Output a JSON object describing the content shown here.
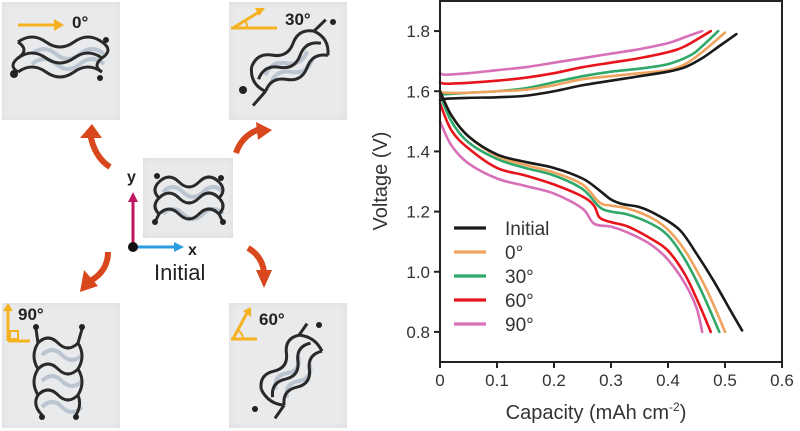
{
  "left_panel": {
    "center_label": "Initial",
    "axis_x_label": "x",
    "axis_y_label": "y",
    "photos": [
      {
        "id": "0",
        "label": "0°",
        "icon": "arrow-right-icon"
      },
      {
        "id": "30",
        "label": "30°",
        "icon": "angle-30-icon"
      },
      {
        "id": "60",
        "label": "60°",
        "icon": "angle-60-icon"
      },
      {
        "id": "90",
        "label": "90°",
        "icon": "right-angle-icon"
      }
    ],
    "colors": {
      "arrow": "#d9471c",
      "angle_marker": "#f5b120",
      "y_axis": "#c0185e",
      "x_axis": "#2a9de0"
    }
  },
  "chart_data": {
    "type": "line",
    "title": "",
    "xlabel": "Capacity (mAh cm",
    "xlabel_sup": "-2",
    "xlabel_end": ")",
    "ylabel": "Voltage (V)",
    "xlim": [
      0,
      0.6
    ],
    "ylim": [
      0.7,
      1.9
    ],
    "xticks": [
      "0",
      "0.1",
      "0.2",
      "0.3",
      "0.4",
      "0.5",
      "0.6"
    ],
    "xtick_values": [
      0,
      0.1,
      0.2,
      0.3,
      0.4,
      0.5,
      0.6
    ],
    "yticks": [
      "0.8",
      "1.0",
      "1.2",
      "1.4",
      "1.6",
      "1.8"
    ],
    "ytick_values": [
      0.8,
      1.0,
      1.2,
      1.4,
      1.6,
      1.8
    ],
    "grid": false,
    "legend_position": "bottom-left",
    "series": [
      {
        "name": "Initial",
        "color": "#1a1a1a",
        "charge": [
          [
            0,
            1.57
          ],
          [
            0.01,
            1.575
          ],
          [
            0.05,
            1.578
          ],
          [
            0.1,
            1.58
          ],
          [
            0.15,
            1.585
          ],
          [
            0.2,
            1.6
          ],
          [
            0.25,
            1.62
          ],
          [
            0.3,
            1.635
          ],
          [
            0.35,
            1.65
          ],
          [
            0.4,
            1.665
          ],
          [
            0.43,
            1.68
          ],
          [
            0.46,
            1.71
          ],
          [
            0.49,
            1.75
          ],
          [
            0.52,
            1.79
          ]
        ],
        "discharge": [
          [
            0,
            1.6
          ],
          [
            0.02,
            1.52
          ],
          [
            0.05,
            1.45
          ],
          [
            0.1,
            1.39
          ],
          [
            0.15,
            1.365
          ],
          [
            0.2,
            1.345
          ],
          [
            0.25,
            1.31
          ],
          [
            0.28,
            1.27
          ],
          [
            0.3,
            1.24
          ],
          [
            0.32,
            1.225
          ],
          [
            0.35,
            1.215
          ],
          [
            0.38,
            1.19
          ],
          [
            0.42,
            1.14
          ],
          [
            0.45,
            1.06
          ],
          [
            0.48,
            0.97
          ],
          [
            0.51,
            0.87
          ],
          [
            0.53,
            0.805
          ]
        ]
      },
      {
        "name": "0°",
        "color": "#f0a35e",
        "charge": [
          [
            0,
            1.6
          ],
          [
            0.01,
            1.595
          ],
          [
            0.05,
            1.595
          ],
          [
            0.1,
            1.6
          ],
          [
            0.15,
            1.605
          ],
          [
            0.2,
            1.62
          ],
          [
            0.25,
            1.64
          ],
          [
            0.3,
            1.65
          ],
          [
            0.35,
            1.66
          ],
          [
            0.4,
            1.67
          ],
          [
            0.43,
            1.69
          ],
          [
            0.46,
            1.73
          ],
          [
            0.5,
            1.795
          ]
        ],
        "discharge": [
          [
            0,
            1.6
          ],
          [
            0.02,
            1.52
          ],
          [
            0.05,
            1.45
          ],
          [
            0.1,
            1.385
          ],
          [
            0.15,
            1.355
          ],
          [
            0.2,
            1.33
          ],
          [
            0.25,
            1.29
          ],
          [
            0.28,
            1.23
          ],
          [
            0.3,
            1.22
          ],
          [
            0.33,
            1.21
          ],
          [
            0.37,
            1.18
          ],
          [
            0.4,
            1.14
          ],
          [
            0.43,
            1.07
          ],
          [
            0.46,
            0.97
          ],
          [
            0.48,
            0.89
          ],
          [
            0.5,
            0.8
          ]
        ]
      },
      {
        "name": "30°",
        "color": "#2fa86a",
        "charge": [
          [
            0,
            1.59
          ],
          [
            0.01,
            1.59
          ],
          [
            0.05,
            1.595
          ],
          [
            0.1,
            1.6
          ],
          [
            0.15,
            1.61
          ],
          [
            0.2,
            1.63
          ],
          [
            0.25,
            1.65
          ],
          [
            0.3,
            1.665
          ],
          [
            0.35,
            1.675
          ],
          [
            0.4,
            1.69
          ],
          [
            0.44,
            1.72
          ],
          [
            0.46,
            1.75
          ],
          [
            0.488,
            1.8
          ]
        ],
        "discharge": [
          [
            0,
            1.59
          ],
          [
            0.02,
            1.5
          ],
          [
            0.05,
            1.43
          ],
          [
            0.1,
            1.375
          ],
          [
            0.15,
            1.345
          ],
          [
            0.2,
            1.32
          ],
          [
            0.25,
            1.275
          ],
          [
            0.28,
            1.215
          ],
          [
            0.3,
            1.2
          ],
          [
            0.33,
            1.19
          ],
          [
            0.37,
            1.16
          ],
          [
            0.4,
            1.12
          ],
          [
            0.43,
            1.04
          ],
          [
            0.46,
            0.93
          ],
          [
            0.49,
            0.8
          ]
        ]
      },
      {
        "name": "60°",
        "color": "#e8141c",
        "charge": [
          [
            0,
            1.63
          ],
          [
            0.01,
            1.625
          ],
          [
            0.05,
            1.628
          ],
          [
            0.1,
            1.635
          ],
          [
            0.15,
            1.645
          ],
          [
            0.2,
            1.66
          ],
          [
            0.25,
            1.68
          ],
          [
            0.3,
            1.695
          ],
          [
            0.35,
            1.71
          ],
          [
            0.4,
            1.73
          ],
          [
            0.43,
            1.75
          ],
          [
            0.475,
            1.8
          ]
        ],
        "discharge": [
          [
            0,
            1.56
          ],
          [
            0.02,
            1.47
          ],
          [
            0.05,
            1.41
          ],
          [
            0.1,
            1.345
          ],
          [
            0.15,
            1.32
          ],
          [
            0.2,
            1.29
          ],
          [
            0.25,
            1.25
          ],
          [
            0.27,
            1.22
          ],
          [
            0.28,
            1.18
          ],
          [
            0.3,
            1.165
          ],
          [
            0.33,
            1.15
          ],
          [
            0.37,
            1.11
          ],
          [
            0.4,
            1.07
          ],
          [
            0.43,
            0.99
          ],
          [
            0.455,
            0.89
          ],
          [
            0.475,
            0.8
          ]
        ]
      },
      {
        "name": "90°",
        "color": "#d870b8",
        "charge": [
          [
            0,
            1.66
          ],
          [
            0.01,
            1.655
          ],
          [
            0.05,
            1.66
          ],
          [
            0.1,
            1.67
          ],
          [
            0.15,
            1.68
          ],
          [
            0.2,
            1.695
          ],
          [
            0.25,
            1.71
          ],
          [
            0.3,
            1.725
          ],
          [
            0.35,
            1.74
          ],
          [
            0.4,
            1.76
          ],
          [
            0.43,
            1.78
          ],
          [
            0.46,
            1.8
          ]
        ],
        "discharge": [
          [
            0,
            1.5
          ],
          [
            0.02,
            1.42
          ],
          [
            0.05,
            1.36
          ],
          [
            0.1,
            1.31
          ],
          [
            0.15,
            1.285
          ],
          [
            0.2,
            1.26
          ],
          [
            0.25,
            1.21
          ],
          [
            0.27,
            1.16
          ],
          [
            0.3,
            1.15
          ],
          [
            0.33,
            1.13
          ],
          [
            0.37,
            1.09
          ],
          [
            0.4,
            1.04
          ],
          [
            0.43,
            0.96
          ],
          [
            0.45,
            0.88
          ],
          [
            0.46,
            0.8
          ]
        ]
      }
    ]
  }
}
